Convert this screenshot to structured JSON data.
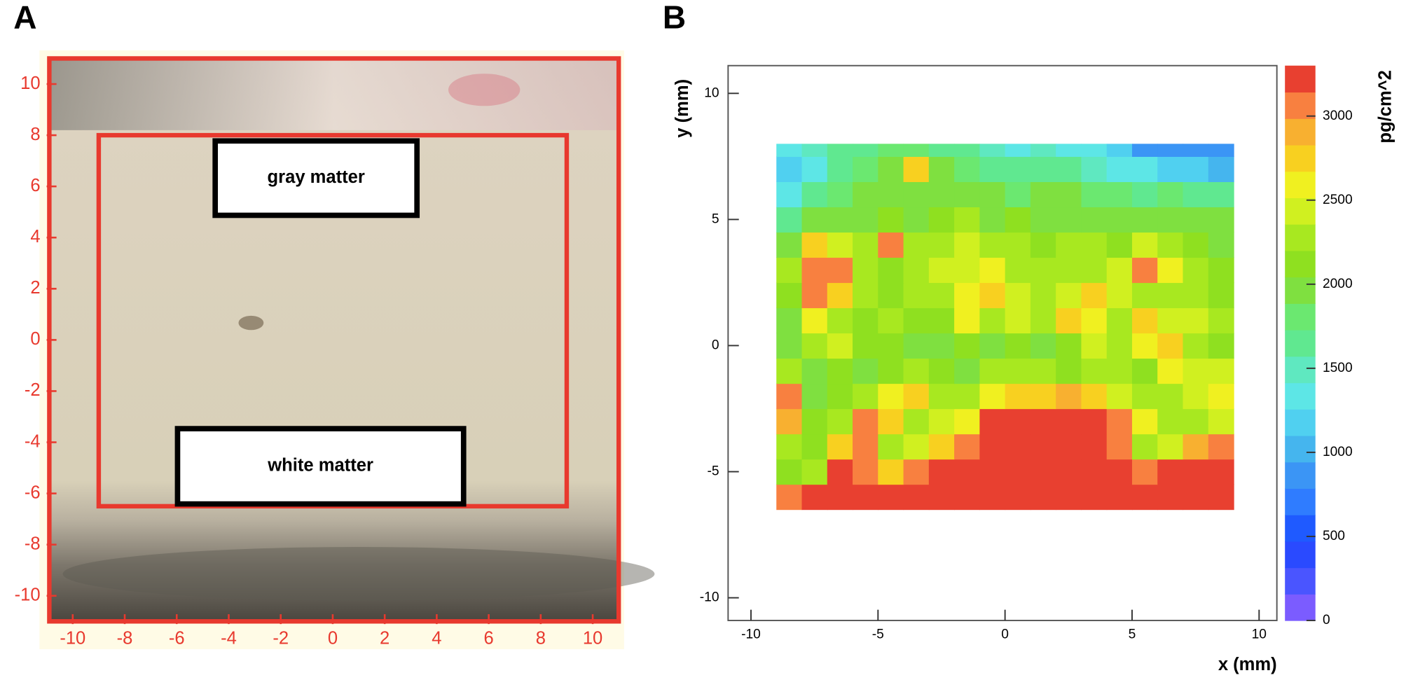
{
  "chart_data": [
    {
      "type": "image",
      "panel_label": "A",
      "xlim": [
        -10.9,
        11
      ],
      "ylim": [
        -11,
        11
      ],
      "xticks": [
        -10,
        -8,
        -6,
        -4,
        -2,
        0,
        2,
        4,
        6,
        8,
        10
      ],
      "yticks": [
        -10,
        -8,
        -6,
        -4,
        -2,
        0,
        2,
        4,
        6,
        8,
        10
      ],
      "color": "#e8392e",
      "box": {
        "x": [
          -9,
          9
        ],
        "y": [
          -6.5,
          8
        ]
      },
      "annotations": [
        "gray matter",
        "white matter"
      ]
    },
    {
      "type": "heatmap",
      "panel_label": "B",
      "xlabel": "x (mm)",
      "ylabel": "y (mm)",
      "xlim": [
        -10.9,
        10.7
      ],
      "ylim": [
        -10.9,
        11.1
      ],
      "xticks": [
        -10,
        -5,
        0,
        5,
        10
      ],
      "yticks": [
        -10,
        -5,
        0,
        5,
        10
      ],
      "xbins": [
        -9,
        -8,
        -7,
        -6,
        -5,
        -4,
        -3,
        -2,
        -1,
        0,
        1,
        2,
        3,
        4,
        5,
        6,
        7,
        8,
        9
      ],
      "ybins": [
        -6.5,
        -5.5,
        -4.5,
        -3.5,
        -2.5,
        -1.5,
        -0.5,
        0.5,
        1.5,
        2.5,
        3.5,
        4.5,
        5.5,
        6.5,
        7.5,
        8
      ],
      "z": [
        [
          3100,
          3200,
          3200,
          3200,
          3200,
          3200,
          3200,
          3200,
          3200,
          3200,
          3200,
          3200,
          3200,
          3200,
          3200,
          3200,
          3200,
          3200
        ],
        [
          2100,
          2300,
          3200,
          3000,
          2700,
          3100,
          3200,
          3200,
          3200,
          3200,
          3200,
          3200,
          3200,
          3200,
          3100,
          3200,
          3200,
          3200
        ],
        [
          2200,
          2100,
          2700,
          3000,
          2300,
          2500,
          2700,
          3100,
          3200,
          3200,
          3200,
          3200,
          3200,
          3000,
          2300,
          2500,
          2900,
          3100
        ],
        [
          2900,
          2100,
          2200,
          3000,
          2800,
          2300,
          2400,
          2600,
          3200,
          3200,
          3200,
          3200,
          3200,
          3000,
          2600,
          2200,
          2300,
          2400
        ],
        [
          3100,
          2000,
          2100,
          2200,
          2600,
          2700,
          2200,
          2300,
          2600,
          2700,
          2700,
          2900,
          2800,
          2400,
          2300,
          2200,
          2400,
          2600
        ],
        [
          2200,
          2000,
          2100,
          2000,
          2100,
          2300,
          2100,
          2000,
          2200,
          2300,
          2200,
          2100,
          2200,
          2300,
          2100,
          2600,
          2400,
          2500
        ],
        [
          2000,
          2300,
          2500,
          2100,
          2100,
          2000,
          2000,
          2100,
          2000,
          2100,
          2000,
          2100,
          2400,
          2200,
          2600,
          2700,
          2300,
          2100
        ],
        [
          2000,
          2600,
          2300,
          2100,
          2200,
          2100,
          2100,
          2600,
          2300,
          2400,
          2200,
          2700,
          2600,
          2200,
          2700,
          2400,
          2500,
          2200
        ],
        [
          2100,
          3100,
          2800,
          2200,
          2100,
          2300,
          2200,
          2600,
          2800,
          2500,
          2300,
          2500,
          2700,
          2400,
          2300,
          2200,
          2300,
          2100
        ],
        [
          2200,
          3100,
          3000,
          2300,
          2100,
          2200,
          2400,
          2500,
          2600,
          2300,
          2200,
          2200,
          2300,
          2500,
          3000,
          2600,
          2200,
          2100
        ],
        [
          2000,
          2700,
          2400,
          2200,
          3000,
          2200,
          2200,
          2400,
          2300,
          2300,
          2100,
          2200,
          2200,
          2100,
          2400,
          2200,
          2100,
          2000
        ],
        [
          1700,
          1900,
          2000,
          2000,
          2100,
          2000,
          2100,
          2200,
          2000,
          2100,
          2000,
          2000,
          1900,
          2000,
          1900,
          1900,
          2000,
          1900
        ],
        [
          1300,
          1600,
          1800,
          1900,
          1900,
          2000,
          1900,
          2000,
          1900,
          1800,
          1900,
          1900,
          1800,
          1800,
          1700,
          1800,
          1700,
          1600
        ],
        [
          1200,
          1400,
          1700,
          1800,
          1900,
          2700,
          1900,
          1800,
          1700,
          1600,
          1700,
          1600,
          1500,
          1400,
          1300,
          1200,
          1100,
          1000
        ],
        [
          1300,
          1500,
          1600,
          1700,
          1800,
          1800,
          1700,
          1600,
          1500,
          1400,
          1500,
          1400,
          1300,
          1100,
          900,
          800,
          800,
          900
        ]
      ],
      "colorbar": {
        "label": "pg/cm^2",
        "zlim": [
          0,
          3300
        ],
        "ticks": [
          0,
          500,
          1000,
          1500,
          2000,
          2500,
          3000
        ],
        "colors": [
          "#7b5cff",
          "#4a55ff",
          "#2a4aff",
          "#1f5aff",
          "#2f7cff",
          "#3b95f5",
          "#45b5ee",
          "#50d0f0",
          "#5de6e6",
          "#5fe8c0",
          "#60e890",
          "#6be870",
          "#7fe040",
          "#8fe020",
          "#a8e820",
          "#d0f020",
          "#f0f020",
          "#f8d020",
          "#f8b030",
          "#f88040",
          "#e84030"
        ]
      }
    }
  ]
}
